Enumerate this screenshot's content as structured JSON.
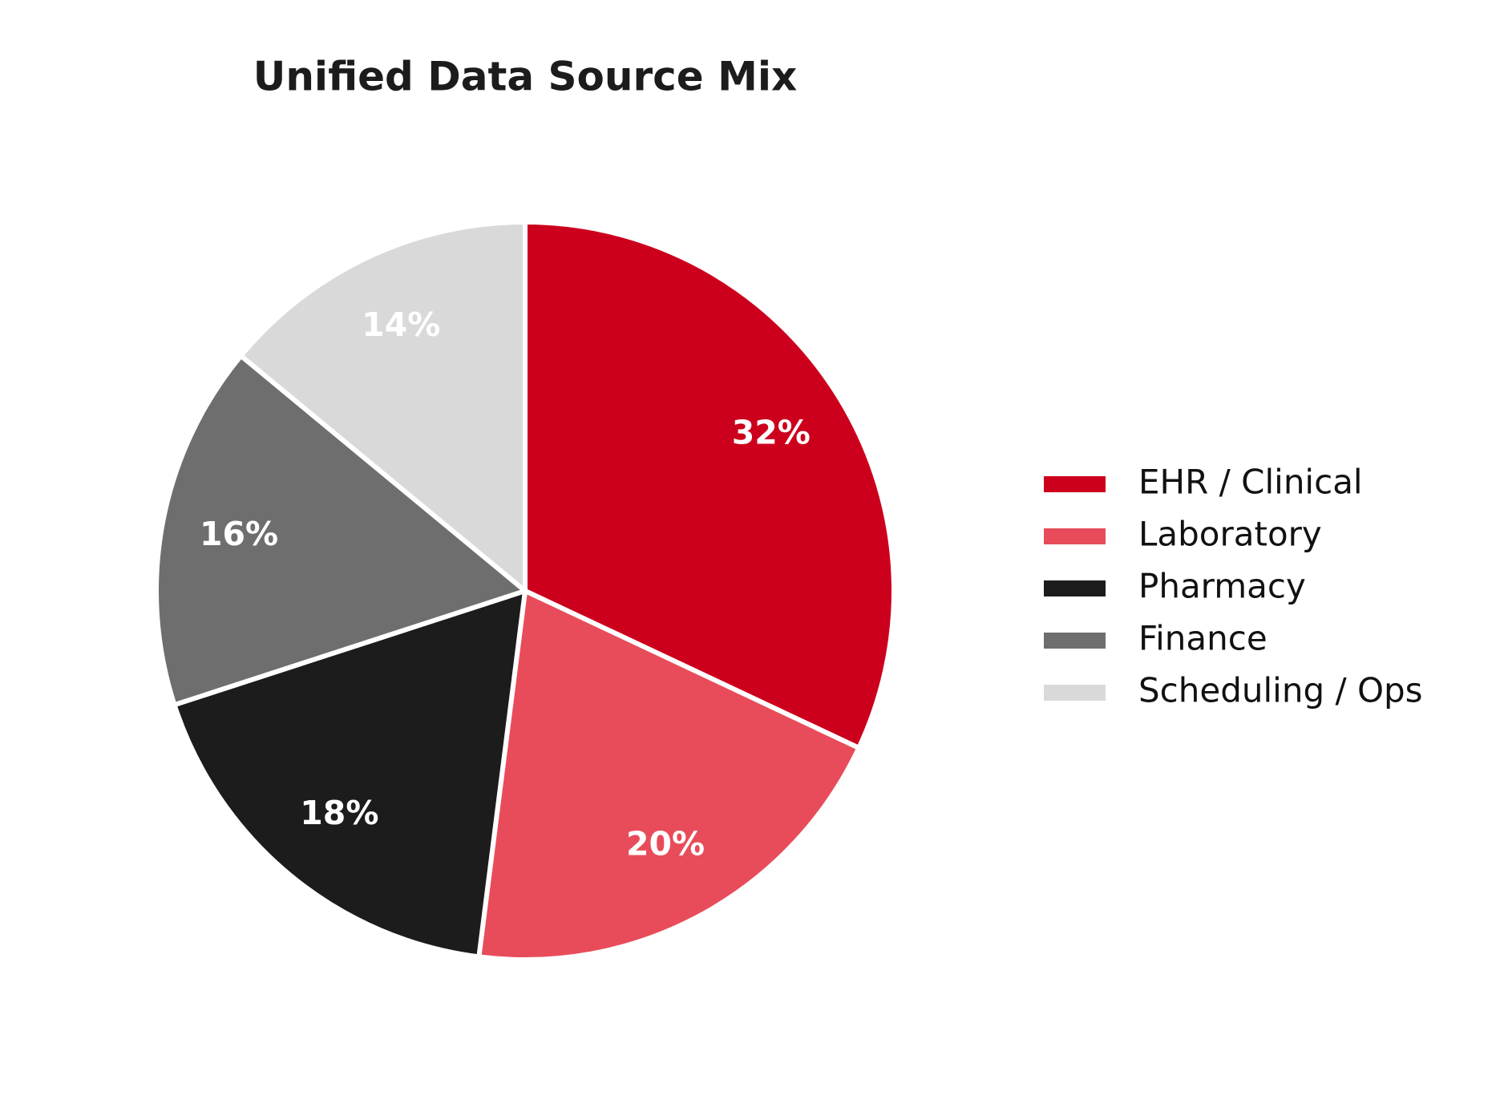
{
  "chart_data": {
    "type": "pie",
    "title": "Unified Data Source Mix",
    "categories": [
      "EHR / Clinical",
      "Laboratory",
      "Pharmacy",
      "Finance",
      "Scheduling / Ops"
    ],
    "values": [
      32,
      20,
      18,
      16,
      14
    ],
    "value_labels": [
      "32%",
      "20%",
      "18%",
      "16%",
      "14%"
    ],
    "colors": [
      "#cc001d",
      "#e84c5a",
      "#1c1c1c",
      "#6e6e6e",
      "#d9d9d9"
    ],
    "legend": "right"
  }
}
